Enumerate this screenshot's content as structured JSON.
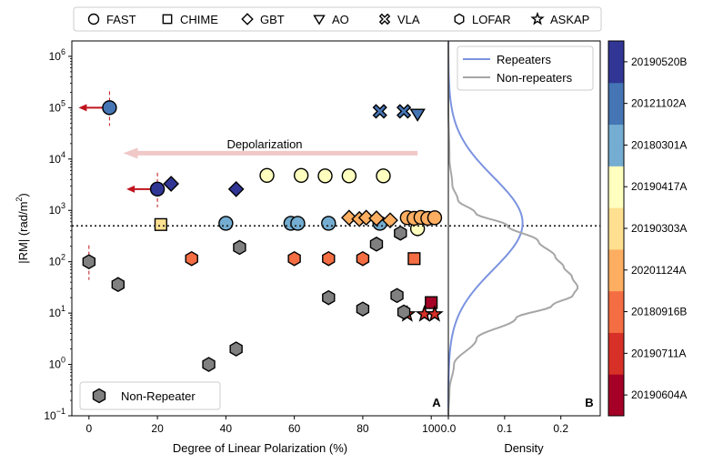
{
  "chart_data": {
    "type": "scatter",
    "legend_top": [
      {
        "label": "FAST",
        "marker": "circle"
      },
      {
        "label": "CHIME",
        "marker": "square"
      },
      {
        "label": "GBT",
        "marker": "diamond"
      },
      {
        "label": "AO",
        "marker": "triangle-down"
      },
      {
        "label": "VLA",
        "marker": "x-cross"
      },
      {
        "label": "LOFAR",
        "marker": "hexagon"
      },
      {
        "label": "ASKAP",
        "marker": "star"
      }
    ],
    "colors": {
      "20190604A": "#a50026",
      "20190711A": "#d73027",
      "20180916B": "#f46d43",
      "20201124A": "#fdae61",
      "20190303A": "#fee090",
      "20190417A": "#ffffbf",
      "20180301A": "#74add1",
      "20121102A": "#4575b4",
      "20190520B": "#313695",
      "non_repeater": "#808080",
      "repeater_density": "#7b93e0",
      "nonrep_density": "#a6a6a6",
      "depol_arrow": "#f0c8c8",
      "upper_limit_arrow": "#c0141e"
    },
    "panel_a": {
      "label": "A",
      "xlabel": "Degree of Linear Polarization (%)",
      "ylabel": "|RM| (rad/m²)",
      "xlim": [
        -5,
        105
      ],
      "ylim_log10": [
        -1,
        6.3
      ],
      "xticks": [
        "0",
        "20",
        "40",
        "60",
        "80",
        "100"
      ],
      "ytick_exponents": [
        "-1",
        "0",
        "1",
        "2",
        "3",
        "4",
        "5",
        "6"
      ],
      "threshold_rm": 500,
      "annotation": "Depolarization",
      "annotation_arrow_from_x": 96,
      "annotation_arrow_to_x": 10,
      "annotation_arrow_rm": 13000,
      "legend_label": "Non-Repeater",
      "points": [
        {
          "x": 6,
          "rm": 100000,
          "marker": "circle",
          "src": "20121102A",
          "limit": true
        },
        {
          "x": 20,
          "rm": 2600,
          "marker": "circle",
          "src": "20190520B",
          "limit": true
        },
        {
          "x": 24,
          "rm": 3300,
          "marker": "diamond",
          "src": "20190520B"
        },
        {
          "x": 43,
          "rm": 2600,
          "marker": "diamond",
          "src": "20190520B"
        },
        {
          "x": 85,
          "rm": 85000,
          "marker": "x-cross",
          "src": "20121102A"
        },
        {
          "x": 92,
          "rm": 85000,
          "marker": "x-cross",
          "src": "20121102A"
        },
        {
          "x": 96,
          "rm": 75000,
          "marker": "triangle-down",
          "src": "20121102A"
        },
        {
          "x": 52,
          "rm": 4800,
          "marker": "circle",
          "src": "20190417A"
        },
        {
          "x": 62,
          "rm": 4800,
          "marker": "circle",
          "src": "20190417A"
        },
        {
          "x": 69,
          "rm": 4700,
          "marker": "circle",
          "src": "20190417A"
        },
        {
          "x": 76,
          "rm": 4700,
          "marker": "circle",
          "src": "20190417A"
        },
        {
          "x": 86,
          "rm": 4700,
          "marker": "circle",
          "src": "20190417A"
        },
        {
          "x": 96,
          "rm": 440,
          "marker": "circle",
          "src": "20190417A"
        },
        {
          "x": 21,
          "rm": 530,
          "marker": "square",
          "src": "20190303A"
        },
        {
          "x": 40,
          "rm": 560,
          "marker": "circle",
          "src": "20180301A"
        },
        {
          "x": 59,
          "rm": 560,
          "marker": "circle",
          "src": "20180301A"
        },
        {
          "x": 61,
          "rm": 560,
          "marker": "circle",
          "src": "20180301A"
        },
        {
          "x": 70,
          "rm": 560,
          "marker": "circle",
          "src": "20180301A"
        },
        {
          "x": 85,
          "rm": 560,
          "marker": "circle",
          "src": "20180301A"
        },
        {
          "x": 76,
          "rm": 720,
          "marker": "diamond",
          "src": "20201124A"
        },
        {
          "x": 79,
          "rm": 680,
          "marker": "diamond",
          "src": "20201124A"
        },
        {
          "x": 81,
          "rm": 720,
          "marker": "diamond",
          "src": "20201124A"
        },
        {
          "x": 84,
          "rm": 700,
          "marker": "diamond",
          "src": "20201124A"
        },
        {
          "x": 88,
          "rm": 640,
          "marker": "diamond",
          "src": "20201124A"
        },
        {
          "x": 93,
          "rm": 720,
          "marker": "circle",
          "src": "20201124A"
        },
        {
          "x": 95,
          "rm": 700,
          "marker": "circle",
          "src": "20201124A"
        },
        {
          "x": 97,
          "rm": 730,
          "marker": "circle",
          "src": "20201124A"
        },
        {
          "x": 99,
          "rm": 700,
          "marker": "circle",
          "src": "20201124A"
        },
        {
          "x": 101,
          "rm": 720,
          "marker": "circle",
          "src": "20201124A"
        },
        {
          "x": 30,
          "rm": 115,
          "marker": "hexagon",
          "src": "20180916B"
        },
        {
          "x": 60,
          "rm": 115,
          "marker": "hexagon",
          "src": "20180916B"
        },
        {
          "x": 70,
          "rm": 115,
          "marker": "hexagon",
          "src": "20180916B"
        },
        {
          "x": 80,
          "rm": 115,
          "marker": "hexagon",
          "src": "20180916B"
        },
        {
          "x": 95,
          "rm": 115,
          "marker": "square",
          "src": "20180916B"
        },
        {
          "x": 100,
          "rm": 16,
          "marker": "square",
          "src": "20190604A"
        },
        {
          "x": 93,
          "rm": 9.5,
          "marker": "star",
          "src": "20190711A"
        },
        {
          "x": 98,
          "rm": 9.5,
          "marker": "star",
          "src": "20190711A"
        },
        {
          "x": 101,
          "rm": 9.5,
          "marker": "star",
          "src": "20190711A"
        },
        {
          "x": 0,
          "rm": 100,
          "marker": "hexagon",
          "src": "non_repeater",
          "limit_line": true
        },
        {
          "x": 8.5,
          "rm": 36,
          "marker": "hexagon",
          "src": "non_repeater"
        },
        {
          "x": 35,
          "rm": 1,
          "marker": "hexagon",
          "src": "non_repeater"
        },
        {
          "x": 43,
          "rm": 2,
          "marker": "hexagon",
          "src": "non_repeater"
        },
        {
          "x": 44,
          "rm": 190,
          "marker": "hexagon",
          "src": "non_repeater"
        },
        {
          "x": 70,
          "rm": 20,
          "marker": "hexagon",
          "src": "non_repeater"
        },
        {
          "x": 80,
          "rm": 12,
          "marker": "hexagon",
          "src": "non_repeater"
        },
        {
          "x": 84,
          "rm": 220,
          "marker": "hexagon",
          "src": "non_repeater"
        },
        {
          "x": 90,
          "rm": 22,
          "marker": "hexagon",
          "src": "non_repeater"
        },
        {
          "x": 91,
          "rm": 360,
          "marker": "hexagon",
          "src": "non_repeater"
        },
        {
          "x": 92,
          "rm": 10.5,
          "marker": "hexagon",
          "src": "non_repeater"
        }
      ]
    },
    "panel_b": {
      "label": "B",
      "xlabel": "Density",
      "xlim": [
        0,
        0.27
      ],
      "xticks": [
        "0.0",
        "0.1",
        "0.2"
      ],
      "xtick_values": [
        0,
        0.1,
        0.2
      ],
      "legend": [
        "Repeaters",
        "Non-repeaters"
      ],
      "series": [
        {
          "name": "Repeaters",
          "peak_log_rm": 2.75,
          "peak_density": 0.132,
          "sigma": 0.9
        },
        {
          "name": "Non-repeaters",
          "density_profile": [
            [
              -1,
              0
            ],
            [
              -0.5,
              0.002
            ],
            [
              0,
              0.01
            ],
            [
              0.5,
              0.05
            ],
            [
              0.9,
              0.12
            ],
            [
              1.15,
              0.185
            ],
            [
              1.35,
              0.222
            ],
            [
              1.5,
              0.23
            ],
            [
              1.7,
              0.22
            ],
            [
              1.9,
              0.205
            ],
            [
              2.1,
              0.19
            ],
            [
              2.4,
              0.16
            ],
            [
              2.7,
              0.105
            ],
            [
              2.95,
              0.048
            ],
            [
              3.2,
              0.017
            ],
            [
              3.5,
              0.007
            ],
            [
              4,
              0.002
            ],
            [
              5,
              0
            ],
            [
              6.3,
              0
            ]
          ]
        }
      ]
    },
    "colorbar": {
      "labels": [
        "20190604A",
        "20190711A",
        "20180916B",
        "20201124A",
        "20190303A",
        "20190417A",
        "20180301A",
        "20121102A",
        "20190520B"
      ]
    }
  }
}
